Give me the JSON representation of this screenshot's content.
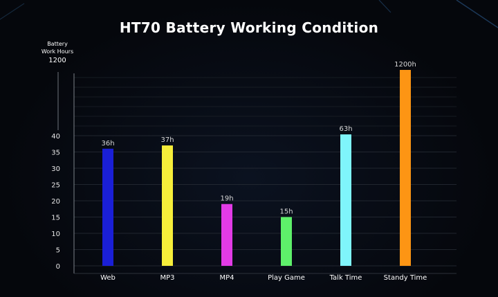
{
  "chart_data": {
    "type": "bar",
    "title": "HT70 Battery Working Condition",
    "ylabel_line1": "Battery",
    "ylabel_line2": "Work Hours",
    "ylabel_top_tick": "1200",
    "categories": [
      "Web",
      "MP3",
      "MP4",
      "Play Game",
      "Talk Time",
      "Standy Time"
    ],
    "values": [
      36,
      37,
      19,
      15,
      63,
      1200
    ],
    "value_labels": [
      "36h",
      "37h",
      "19h",
      "15h",
      "63h",
      "1200h"
    ],
    "colors": [
      "#1a1fd6",
      "#f6ee3a",
      "#e23be6",
      "#5ef06a",
      "#7ff5fb",
      "#fd9514"
    ],
    "yticks": [
      0,
      5,
      10,
      15,
      20,
      25,
      30,
      35,
      40
    ],
    "ylim": [
      0,
      40
    ],
    "axis_break": true,
    "grid": true
  }
}
